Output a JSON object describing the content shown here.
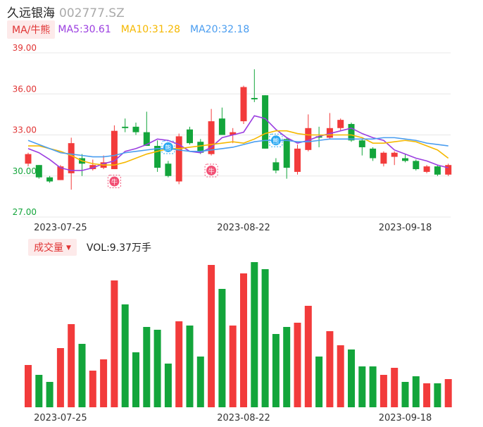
{
  "header": {
    "name": "久远银海",
    "code": "002777.SZ"
  },
  "ma_legend": {
    "tag": "MA/牛熊",
    "items": [
      {
        "label": "MA5:30.61",
        "color": "#9b3ee0"
      },
      {
        "label": "MA10:31.28",
        "color": "#f5b800"
      },
      {
        "label": "MA20:32.18",
        "color": "#4a9df0"
      }
    ]
  },
  "volume_legend": {
    "tag": "成交量",
    "value": "VOL:9.37万手"
  },
  "colors": {
    "up": "#f23b3b",
    "down": "#13a53b",
    "grid": "#e8e8e8",
    "axis_label": "#e03434",
    "axis_label_low": "#13a53b"
  },
  "markers": [
    {
      "index": 8,
      "label": "牛",
      "type": "bull",
      "price": 29.6
    },
    {
      "index": 13,
      "label": "熊",
      "type": "bear",
      "price": 32.1
    },
    {
      "index": 17,
      "label": "牛",
      "type": "bull",
      "price": 30.4
    },
    {
      "index": 23,
      "label": "熊",
      "type": "bear",
      "price": 32.6
    }
  ],
  "chart_data": [
    {
      "type": "candlestick",
      "ylim": [
        27.0,
        39.0
      ],
      "y_ticks": [
        "39.00",
        "36.00",
        "33.00",
        "30.00",
        "27.00"
      ],
      "x_ticks": [
        {
          "index": 3,
          "label": "2023-07-25"
        },
        {
          "index": 20,
          "label": "2023-08-22"
        },
        {
          "index": 35,
          "label": "2023-09-18"
        }
      ],
      "candles": [
        {
          "o": 30.9,
          "h": 31.7,
          "l": 30.7,
          "c": 31.6
        },
        {
          "o": 30.8,
          "h": 30.8,
          "l": 29.8,
          "c": 29.9
        },
        {
          "o": 29.9,
          "h": 30.0,
          "l": 29.5,
          "c": 29.6
        },
        {
          "o": 29.7,
          "h": 30.8,
          "l": 29.7,
          "c": 30.7
        },
        {
          "o": 30.2,
          "h": 32.8,
          "l": 29.0,
          "c": 32.4
        },
        {
          "o": 31.3,
          "h": 31.6,
          "l": 30.0,
          "c": 30.9
        },
        {
          "o": 30.5,
          "h": 31.2,
          "l": 30.4,
          "c": 30.8
        },
        {
          "o": 30.6,
          "h": 31.5,
          "l": 30.5,
          "c": 31.0
        },
        {
          "o": 30.5,
          "h": 33.7,
          "l": 30.5,
          "c": 33.3
        },
        {
          "o": 33.6,
          "h": 34.2,
          "l": 33.2,
          "c": 33.5
        },
        {
          "o": 33.6,
          "h": 33.9,
          "l": 33.0,
          "c": 33.2
        },
        {
          "o": 33.2,
          "h": 34.7,
          "l": 32.2,
          "c": 32.2
        },
        {
          "o": 32.2,
          "h": 32.6,
          "l": 30.3,
          "c": 30.6
        },
        {
          "o": 30.9,
          "h": 31.1,
          "l": 29.9,
          "c": 30.0
        },
        {
          "o": 29.6,
          "h": 33.1,
          "l": 29.4,
          "c": 32.9
        },
        {
          "o": 33.4,
          "h": 33.6,
          "l": 32.3,
          "c": 32.4
        },
        {
          "o": 32.5,
          "h": 32.7,
          "l": 31.6,
          "c": 31.7
        },
        {
          "o": 31.6,
          "h": 34.9,
          "l": 31.5,
          "c": 34.0
        },
        {
          "o": 34.2,
          "h": 35.0,
          "l": 33.0,
          "c": 33.0
        },
        {
          "o": 33.0,
          "h": 33.5,
          "l": 32.4,
          "c": 33.2
        },
        {
          "o": 34.0,
          "h": 36.6,
          "l": 33.8,
          "c": 36.5
        },
        {
          "o": 35.7,
          "h": 37.8,
          "l": 35.4,
          "c": 35.6
        },
        {
          "o": 35.9,
          "h": 35.9,
          "l": 32.0,
          "c": 32.0
        },
        {
          "o": 31.0,
          "h": 31.3,
          "l": 30.2,
          "c": 30.4
        },
        {
          "o": 32.7,
          "h": 32.8,
          "l": 29.8,
          "c": 30.6
        },
        {
          "o": 30.3,
          "h": 32.3,
          "l": 30.1,
          "c": 32.0
        },
        {
          "o": 31.9,
          "h": 34.5,
          "l": 31.8,
          "c": 33.5
        },
        {
          "o": 32.9,
          "h": 33.6,
          "l": 32.1,
          "c": 32.8
        },
        {
          "o": 32.8,
          "h": 34.6,
          "l": 32.7,
          "c": 33.5
        },
        {
          "o": 33.5,
          "h": 34.2,
          "l": 33.3,
          "c": 34.1
        },
        {
          "o": 33.8,
          "h": 33.9,
          "l": 32.5,
          "c": 32.6
        },
        {
          "o": 32.6,
          "h": 32.7,
          "l": 31.5,
          "c": 32.1
        },
        {
          "o": 32.0,
          "h": 32.1,
          "l": 31.1,
          "c": 31.3
        },
        {
          "o": 30.9,
          "h": 31.8,
          "l": 30.7,
          "c": 31.7
        },
        {
          "o": 31.4,
          "h": 31.8,
          "l": 30.8,
          "c": 31.7
        },
        {
          "o": 31.3,
          "h": 31.6,
          "l": 31.0,
          "c": 31.1
        },
        {
          "o": 31.1,
          "h": 31.2,
          "l": 30.4,
          "c": 30.5
        },
        {
          "o": 30.3,
          "h": 30.8,
          "l": 30.2,
          "c": 30.7
        },
        {
          "o": 30.7,
          "h": 30.8,
          "l": 30.0,
          "c": 30.1
        },
        {
          "o": 30.1,
          "h": 30.9,
          "l": 30.0,
          "c": 30.8
        }
      ],
      "series": [
        {
          "name": "MA5",
          "values": [
            32.0,
            31.7,
            31.2,
            30.6,
            30.4,
            30.4,
            30.6,
            30.9,
            31.1,
            31.8,
            32.0,
            32.3,
            32.7,
            32.6,
            32.3,
            31.8,
            31.7,
            32.1,
            32.8,
            33.0,
            33.2,
            34.4,
            34.2,
            33.4,
            32.8,
            32.4,
            32.6,
            32.9,
            33.1,
            33.3,
            33.5,
            33.1,
            32.8,
            32.6,
            31.9,
            31.6,
            31.3,
            31.1,
            30.8,
            30.6
          ]
        },
        {
          "name": "MA10",
          "values": [
            32.2,
            32.2,
            32.0,
            31.8,
            31.5,
            31.1,
            30.9,
            30.8,
            30.8,
            31.0,
            31.3,
            31.6,
            31.8,
            32.0,
            32.0,
            32.1,
            32.2,
            32.3,
            32.4,
            32.5,
            32.4,
            32.7,
            33.1,
            33.3,
            33.3,
            33.1,
            33.0,
            33.0,
            33.0,
            33.0,
            33.0,
            32.8,
            32.4,
            32.4,
            32.5,
            32.6,
            32.5,
            32.2,
            31.9,
            31.3
          ]
        },
        {
          "name": "MA20",
          "values": [
            32.6,
            32.3,
            32.0,
            31.7,
            31.6,
            31.5,
            31.4,
            31.4,
            31.5,
            31.7,
            31.8,
            31.9,
            32.0,
            32.0,
            31.9,
            31.8,
            31.8,
            31.9,
            32.0,
            32.1,
            32.3,
            32.5,
            32.6,
            32.6,
            32.6,
            32.5,
            32.5,
            32.6,
            32.7,
            32.7,
            32.7,
            32.7,
            32.7,
            32.8,
            32.8,
            32.7,
            32.6,
            32.4,
            32.3,
            32.2
          ]
        }
      ]
    },
    {
      "type": "bar",
      "name": "成交量",
      "values": [
        30,
        23,
        18,
        42,
        59,
        45,
        26,
        34,
        90,
        73,
        39,
        57,
        55,
        31,
        61,
        58,
        36,
        101,
        84,
        58,
        95,
        103,
        98,
        52,
        57,
        60,
        72,
        36,
        54,
        44,
        41,
        29,
        29,
        23,
        28,
        18,
        22,
        17,
        17,
        20
      ]
    }
  ]
}
